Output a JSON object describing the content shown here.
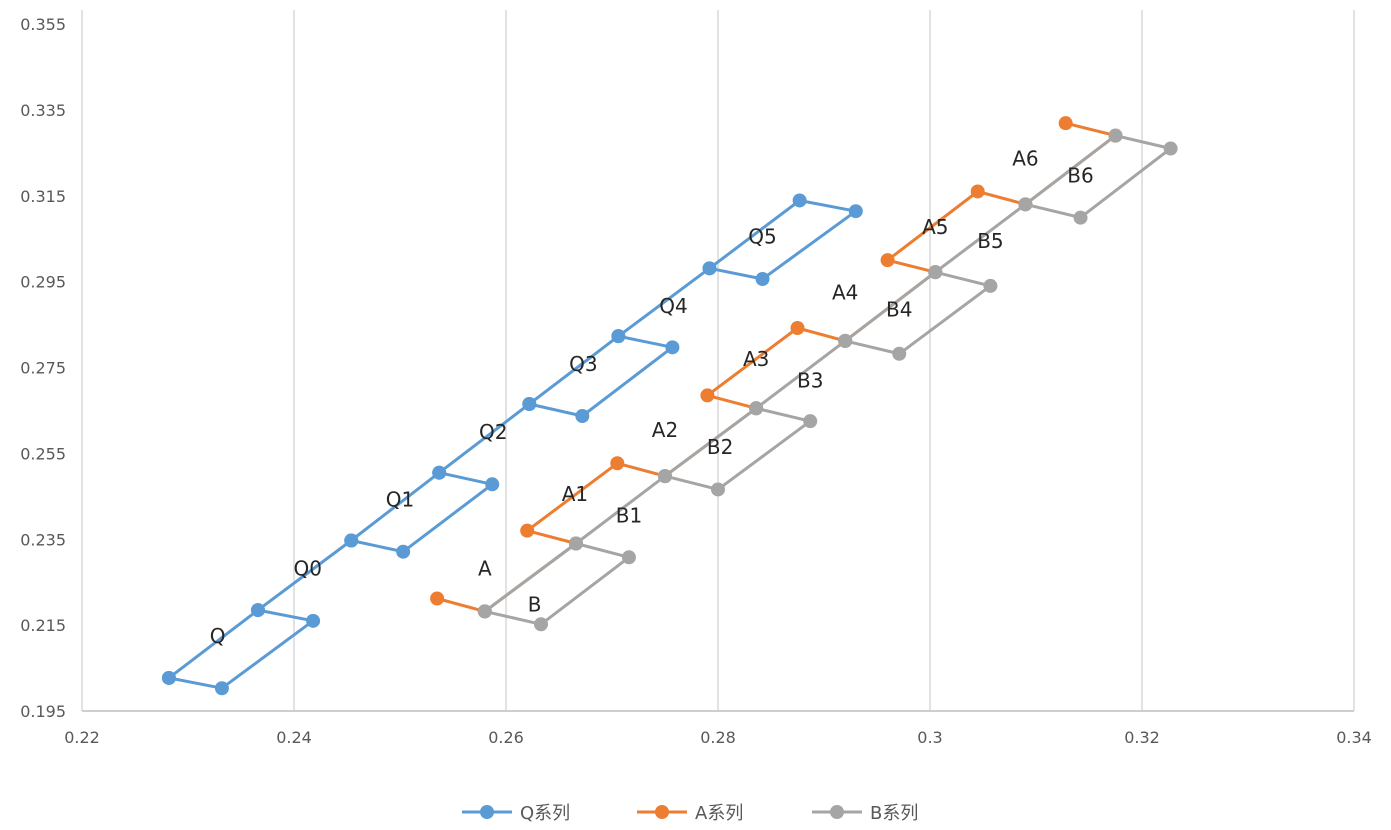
{
  "chart_data": {
    "type": "line",
    "title": "",
    "xlabel": "",
    "ylabel": "",
    "xlim": [
      0.22,
      0.34
    ],
    "ylim": [
      0.195,
      0.355
    ],
    "x_ticks": [
      "0.22",
      "0.24",
      "0.26",
      "0.28",
      "0.3",
      "0.32",
      "0.34"
    ],
    "y_ticks": [
      "0.355",
      "0.335",
      "0.315",
      "0.295",
      "0.275",
      "0.255",
      "0.235",
      "0.215",
      "0.195"
    ],
    "grid": "vertical",
    "legend": "bottom",
    "series": [
      {
        "name": "Q系列",
        "color": "#5B9BD5",
        "points": [
          [
            0.2282,
            0.2027
          ],
          [
            0.2332,
            0.2003
          ],
          [
            0.2418,
            0.216
          ],
          [
            0.2366,
            0.2185
          ],
          [
            0.2454,
            0.2347
          ],
          [
            0.2503,
            0.2321
          ],
          [
            0.2587,
            0.2478
          ],
          [
            0.2537,
            0.2505
          ],
          [
            0.2622,
            0.2665
          ],
          [
            0.2672,
            0.2637
          ],
          [
            0.2757,
            0.2797
          ],
          [
            0.2706,
            0.2823
          ],
          [
            0.2792,
            0.2981
          ],
          [
            0.2842,
            0.2956
          ],
          [
            0.293,
            0.3114
          ],
          [
            0.2877,
            0.3139
          ],
          [
            0.2792,
            0.2981
          ],
          [
            0.2706,
            0.2823
          ],
          [
            0.2622,
            0.2665
          ],
          [
            0.2537,
            0.2505
          ],
          [
            0.2454,
            0.2347
          ],
          [
            0.2366,
            0.2185
          ],
          [
            0.2282,
            0.2027
          ]
        ]
      },
      {
        "name": "A系列",
        "color": "#ED7D31",
        "points": [
          [
            0.2535,
            0.2212
          ],
          [
            0.258,
            0.2182
          ],
          [
            0.2666,
            0.234
          ],
          [
            0.262,
            0.237
          ],
          [
            0.2705,
            0.2527
          ],
          [
            0.275,
            0.2497
          ],
          [
            0.2836,
            0.2655
          ],
          [
            0.279,
            0.2685
          ],
          [
            0.2875,
            0.2842
          ],
          [
            0.292,
            0.2812
          ],
          [
            0.3005,
            0.2972
          ],
          [
            0.296,
            0.3
          ],
          [
            0.3045,
            0.316
          ],
          [
            0.309,
            0.313
          ],
          [
            0.3175,
            0.329
          ],
          [
            0.3128,
            0.3319
          ]
        ]
      },
      {
        "name": "B系列",
        "color": "#A5A5A5",
        "points": [
          [
            0.258,
            0.2182
          ],
          [
            0.2633,
            0.2152
          ],
          [
            0.2716,
            0.2308
          ],
          [
            0.2666,
            0.234
          ],
          [
            0.275,
            0.2497
          ],
          [
            0.28,
            0.2466
          ],
          [
            0.2887,
            0.2625
          ],
          [
            0.2836,
            0.2655
          ],
          [
            0.292,
            0.2812
          ],
          [
            0.2971,
            0.2782
          ],
          [
            0.3057,
            0.294
          ],
          [
            0.3005,
            0.2972
          ],
          [
            0.309,
            0.313
          ],
          [
            0.3142,
            0.3099
          ],
          [
            0.3227,
            0.326
          ],
          [
            0.3175,
            0.329
          ],
          [
            0.309,
            0.313
          ],
          [
            0.3005,
            0.2972
          ],
          [
            0.292,
            0.2812
          ],
          [
            0.2836,
            0.2655
          ],
          [
            0.275,
            0.2497
          ],
          [
            0.2666,
            0.234
          ],
          [
            0.258,
            0.2182
          ]
        ]
      }
    ],
    "annotations": [
      {
        "text": "Q",
        "x": 0.2328,
        "y": 0.2125
      },
      {
        "text": "Q0",
        "x": 0.2413,
        "y": 0.2282
      },
      {
        "text": "Q1",
        "x": 0.25,
        "y": 0.2443
      },
      {
        "text": "Q2",
        "x": 0.2588,
        "y": 0.26
      },
      {
        "text": "Q3",
        "x": 0.2673,
        "y": 0.2758
      },
      {
        "text": "Q4",
        "x": 0.2758,
        "y": 0.2893
      },
      {
        "text": "Q5",
        "x": 0.2842,
        "y": 0.3055
      },
      {
        "text": "A",
        "x": 0.258,
        "y": 0.2282
      },
      {
        "text": "B",
        "x": 0.2627,
        "y": 0.2198
      },
      {
        "text": "A1",
        "x": 0.2665,
        "y": 0.2455
      },
      {
        "text": "B1",
        "x": 0.2716,
        "y": 0.2405
      },
      {
        "text": "A2",
        "x": 0.275,
        "y": 0.2605
      },
      {
        "text": "B2",
        "x": 0.2802,
        "y": 0.2565
      },
      {
        "text": "A3",
        "x": 0.2836,
        "y": 0.277
      },
      {
        "text": "B3",
        "x": 0.2887,
        "y": 0.272
      },
      {
        "text": "A4",
        "x": 0.292,
        "y": 0.2925
      },
      {
        "text": "B4",
        "x": 0.2971,
        "y": 0.2885
      },
      {
        "text": "A5",
        "x": 0.3005,
        "y": 0.3077
      },
      {
        "text": "B5",
        "x": 0.3057,
        "y": 0.3045
      },
      {
        "text": "A6",
        "x": 0.309,
        "y": 0.3237
      },
      {
        "text": "B6",
        "x": 0.3142,
        "y": 0.3197
      }
    ]
  }
}
